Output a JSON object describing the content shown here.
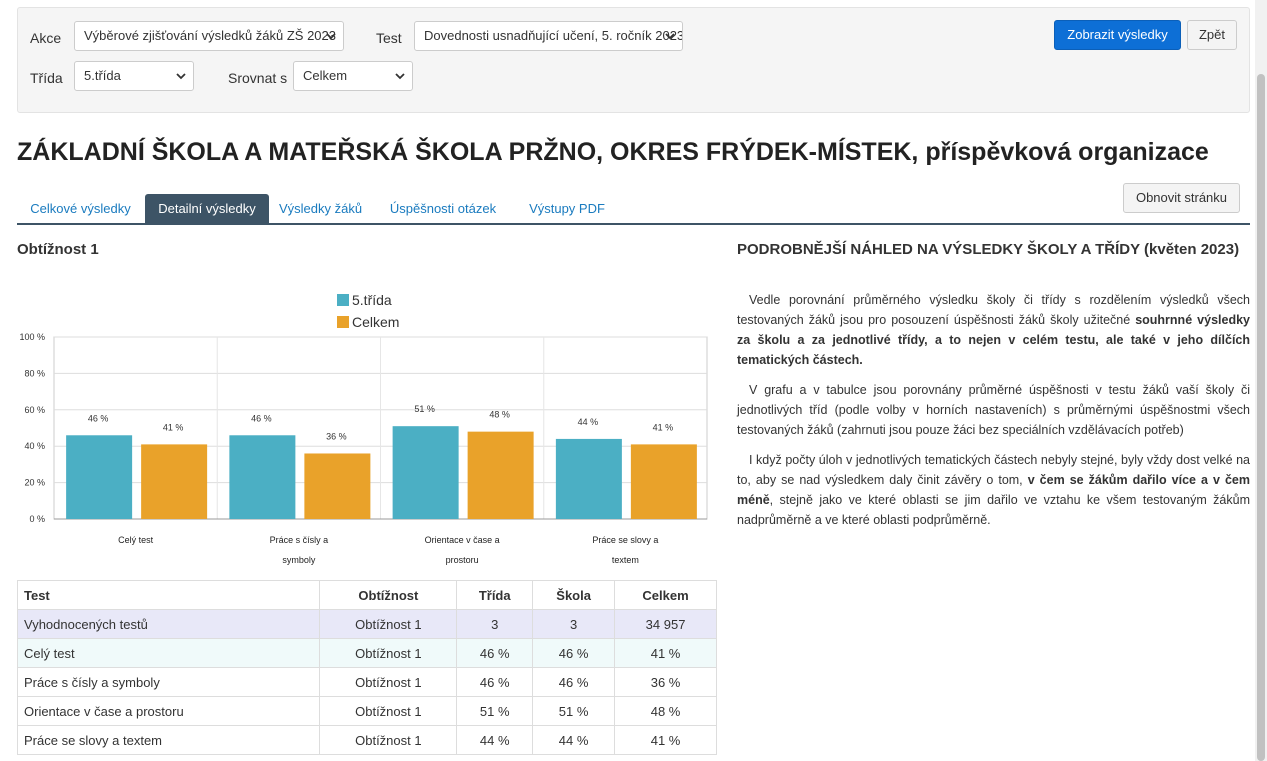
{
  "filters": {
    "akce_label": "Akce",
    "akce_value": "Výběrové zjišťování výsledků žáků ZŠ 2023",
    "test_label": "Test",
    "test_value": "Dovednosti usnadňující učení, 5. ročník 2023",
    "trida_label": "Třída",
    "trida_value": "5.třída",
    "srovnat_label": "Srovnat s",
    "srovnat_value": "Celkem",
    "show_button": "Zobrazit výsledky",
    "back_button": "Zpět"
  },
  "school_name": "ZÁKLADNÍ ŠKOLA A MATEŘSKÁ ŠKOLA PRŽNO, OKRES FRÝDEK-MÍSTEK, příspěvková organizace",
  "tabs": [
    {
      "label": "Celkové výsledky"
    },
    {
      "label": "Detailní výsledky"
    },
    {
      "label": "Výsledky žáků"
    },
    {
      "label": "Úspěšnosti otázek"
    },
    {
      "label": "Výstupy PDF"
    }
  ],
  "refresh_button": "Obnovit stránku",
  "section_title": "Obtížnost 1",
  "chart_data": {
    "type": "bar",
    "categories": [
      "Celý test",
      "Práce s čísly a symboly",
      "Orientace v čase a prostoru",
      "Práce se slovy a textem"
    ],
    "category_lines": [
      [
        "Celý test"
      ],
      [
        "Práce s čísly a",
        "symboly"
      ],
      [
        "Orientace v čase a",
        "prostoru"
      ],
      [
        "Práce se slovy a",
        "textem"
      ]
    ],
    "series": [
      {
        "name": "5.třída",
        "values": [
          46,
          46,
          51,
          44
        ],
        "color": "#4bafc4"
      },
      {
        "name": "Celkem",
        "values": [
          41,
          36,
          48,
          41
        ],
        "color": "#e9a22a"
      }
    ],
    "yticks": [
      "0 %",
      "20 %",
      "40 %",
      "60 %",
      "80 %",
      "100 %"
    ],
    "value_suffix": " %",
    "ylim": [
      0,
      100
    ],
    "grid": true,
    "legend_position": "top-center"
  },
  "table": {
    "headers": [
      "Test",
      "Obtížnost",
      "Třída",
      "Škola",
      "Celkem"
    ],
    "rows": [
      [
        "Vyhodnocených testů",
        "Obtížnost 1",
        "3",
        "3",
        "34 957"
      ],
      [
        "Celý test",
        "Obtížnost 1",
        "46 %",
        "46 %",
        "41 %"
      ],
      [
        "Práce s čísly a symboly",
        "Obtížnost 1",
        "46 %",
        "46 %",
        "36 %"
      ],
      [
        "Orientace v čase a prostoru",
        "Obtížnost 1",
        "51 %",
        "51 %",
        "48 %"
      ],
      [
        "Práce se slovy a textem",
        "Obtížnost 1",
        "44 %",
        "44 %",
        "41 %"
      ]
    ]
  },
  "right": {
    "title": "PODROBNĚJŠÍ NÁHLED NA VÝSLEDKY ŠKOLY A TŘÍDY (květen 2023)",
    "p1_a": "Vedle porovnání průměrného výsledku školy či třídy s rozdělením výsledků všech testovaných žáků jsou pro posouzení úspěšnosti žáků školy užitečné ",
    "p1_b": "souhrnné výsledky za školu a za jednotlivé třídy, a to nejen v celém testu, ale také v jeho dílčích tematických částech.",
    "p2": "V grafu a v tabulce jsou porovnány průměrné úspěšnosti v testu žáků vaší školy či jednotlivých tříd (podle volby v horních nastaveních) s průměrnými úspěšnostmi všech testovaných žáků (zahrnuti jsou pouze žáci bez speciálních vzdělávacích potřeb)",
    "p3_a": "I když počty úloh v jednotlivých tematických částech nebyly stejné, byly vždy dost velké na to, aby se nad výsledkem daly činit závěry o tom, ",
    "p3_b": "v čem se žákům dařilo více a v čem méně",
    "p3_c": ", stejně jako ve které oblasti se jim dařilo ve vztahu ke všem testovaným žákům nadprůměrně a ve které oblasti podprůměrně."
  }
}
